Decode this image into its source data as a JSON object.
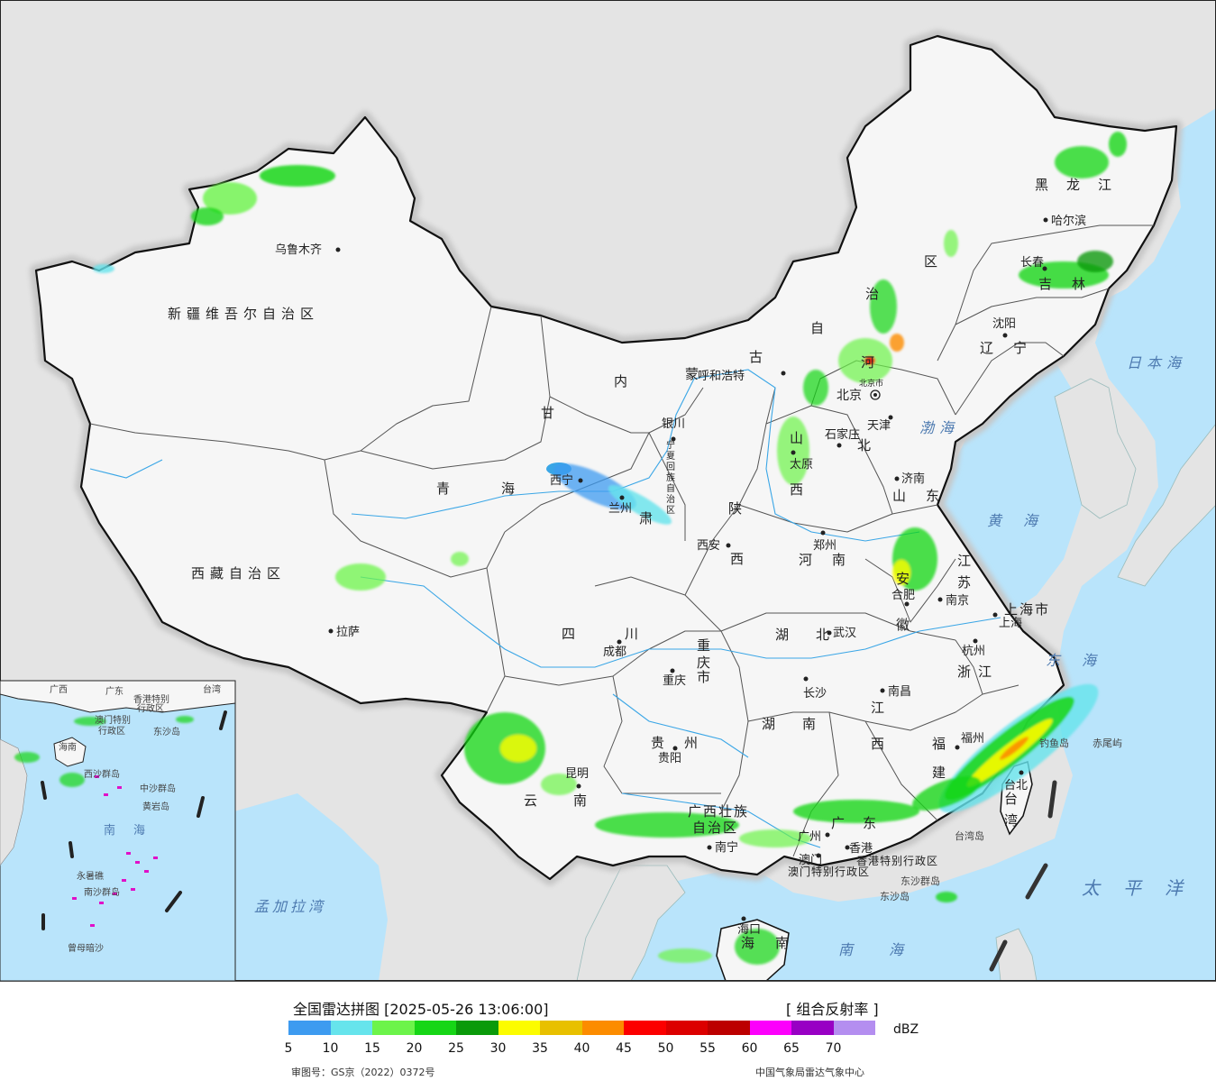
{
  "legend": {
    "title": "全国雷达拼图 [2025-05-26 13:06:00]",
    "product": "[ 组合反射率 ]",
    "unit": "dBZ",
    "ticks": [
      "5",
      "10",
      "15",
      "20",
      "25",
      "30",
      "35",
      "40",
      "45",
      "50",
      "55",
      "60",
      "65",
      "70"
    ],
    "colors": [
      "#3d9bf0",
      "#66e4ec",
      "#6cf44a",
      "#16d616",
      "#0a9a0a",
      "#fcfc00",
      "#e8c000",
      "#fc8c00",
      "#fc0000",
      "#dc0000",
      "#bc0000",
      "#fc00fc",
      "#9800c4",
      "#b48ef0"
    ],
    "approval": "审图号：GS京（2022）0372号",
    "source": "中国气象局雷达气象中心"
  },
  "colors": {
    "ocean": "#b9e4fb",
    "foreign_land": "#e4e4e4",
    "china_land": "#f6f6f6",
    "border": "#111111",
    "ocean_label": "#4d7ab0"
  },
  "labels": {
    "regions": [
      {
        "id": "xinjiang",
        "text": "新疆维吾尔自治区"
      },
      {
        "id": "xizang",
        "text": "西藏自治区"
      },
      {
        "id": "qinghai1",
        "text": "青"
      },
      {
        "id": "qinghai2",
        "text": "海"
      },
      {
        "id": "gansu1",
        "text": "甘"
      },
      {
        "id": "gansu2",
        "text": "肃"
      },
      {
        "id": "nmg1",
        "text": "内"
      },
      {
        "id": "nmg2",
        "text": "蒙"
      },
      {
        "id": "nmg3",
        "text": "古"
      },
      {
        "id": "nmg4",
        "text": "自"
      },
      {
        "id": "nmg5",
        "text": "治"
      },
      {
        "id": "nmg6",
        "text": "区"
      },
      {
        "id": "hlj",
        "text": "黑龙江"
      },
      {
        "id": "jilin",
        "text": "吉林"
      },
      {
        "id": "liaoning",
        "text": "辽宁"
      },
      {
        "id": "hebei1",
        "text": "河"
      },
      {
        "id": "hebei2",
        "text": "北"
      },
      {
        "id": "shanxi1",
        "text": "山"
      },
      {
        "id": "shanxi2",
        "text": "西"
      },
      {
        "id": "shaanxi1",
        "text": "陕"
      },
      {
        "id": "shaanxi2",
        "text": "西"
      },
      {
        "id": "shandong",
        "text": "山东"
      },
      {
        "id": "henan",
        "text": "河南"
      },
      {
        "id": "jiangsu1",
        "text": "江"
      },
      {
        "id": "jiangsu2",
        "text": "苏"
      },
      {
        "id": "anhui1",
        "text": "安"
      },
      {
        "id": "anhui2",
        "text": "徽"
      },
      {
        "id": "sichuan",
        "text": "四川"
      },
      {
        "id": "hubei",
        "text": "湖北"
      },
      {
        "id": "hunan",
        "text": "湖南"
      },
      {
        "id": "jiangxi1",
        "text": "江"
      },
      {
        "id": "jiangxi2",
        "text": "西"
      },
      {
        "id": "zhejiang",
        "text": "浙江"
      },
      {
        "id": "fujian1",
        "text": "福"
      },
      {
        "id": "fujian2",
        "text": "建"
      },
      {
        "id": "guizhou",
        "text": "贵州"
      },
      {
        "id": "yunnan",
        "text": "云南"
      },
      {
        "id": "guangxi1",
        "text": "广西壮族"
      },
      {
        "id": "guangxi2",
        "text": "自治区"
      },
      {
        "id": "guangdong",
        "text": "广东"
      },
      {
        "id": "chongqing1",
        "text": "重"
      },
      {
        "id": "chongqing2",
        "text": "庆"
      },
      {
        "id": "chongqing3",
        "text": "市"
      },
      {
        "id": "shanghaishi",
        "text": "上海市"
      },
      {
        "id": "taiwan1",
        "text": "台"
      },
      {
        "id": "taiwan2",
        "text": "湾"
      },
      {
        "id": "hainan1",
        "text": "海"
      },
      {
        "id": "hainan2",
        "text": "南"
      },
      {
        "id": "hk_sar",
        "text": "香港特别行政区"
      },
      {
        "id": "macao_sar",
        "text": "澳门特别行政区"
      },
      {
        "id": "ningxia1",
        "text": "宁"
      },
      {
        "id": "ningxia2",
        "text": "夏"
      },
      {
        "id": "ningxia3",
        "text": "回"
      },
      {
        "id": "ningxia4",
        "text": "族"
      },
      {
        "id": "ningxia5",
        "text": "自"
      },
      {
        "id": "ningxia6",
        "text": "治"
      },
      {
        "id": "ningxia7",
        "text": "区"
      }
    ],
    "cities": [
      {
        "id": "urumqi",
        "text": "乌鲁木齐"
      },
      {
        "id": "lhasa",
        "text": "拉萨"
      },
      {
        "id": "xining",
        "text": "西宁"
      },
      {
        "id": "lanzhou",
        "text": "兰州"
      },
      {
        "id": "yinchuan",
        "text": "银川"
      },
      {
        "id": "hohhot",
        "text": "呼和浩特"
      },
      {
        "id": "beijing",
        "text": "北京"
      },
      {
        "id": "beijingshi",
        "text": "北京市"
      },
      {
        "id": "tianjin",
        "text": "天津"
      },
      {
        "id": "shijiazhuang",
        "text": "石家庄"
      },
      {
        "id": "taiyuan",
        "text": "太原"
      },
      {
        "id": "jinan",
        "text": "济南"
      },
      {
        "id": "zhengzhou",
        "text": "郑州"
      },
      {
        "id": "xian",
        "text": "西安"
      },
      {
        "id": "harbin",
        "text": "哈尔滨"
      },
      {
        "id": "changchun",
        "text": "长春"
      },
      {
        "id": "shenyang",
        "text": "沈阳"
      },
      {
        "id": "nanjing",
        "text": "南京"
      },
      {
        "id": "hefei",
        "text": "合肥"
      },
      {
        "id": "shanghai",
        "text": "上海"
      },
      {
        "id": "hangzhou",
        "text": "杭州"
      },
      {
        "id": "wuhan",
        "text": "武汉"
      },
      {
        "id": "chengdu",
        "text": "成都"
      },
      {
        "id": "chongqing",
        "text": "重庆"
      },
      {
        "id": "changsha",
        "text": "长沙"
      },
      {
        "id": "nanchang",
        "text": "南昌"
      },
      {
        "id": "fuzhou",
        "text": "福州"
      },
      {
        "id": "taibei",
        "text": "台北"
      },
      {
        "id": "guiyang",
        "text": "贵阳"
      },
      {
        "id": "kunming",
        "text": "昆明"
      },
      {
        "id": "nanning",
        "text": "南宁"
      },
      {
        "id": "guangzhou",
        "text": "广州"
      },
      {
        "id": "hongkong",
        "text": "香港"
      },
      {
        "id": "macau",
        "text": "澳门"
      },
      {
        "id": "haikou",
        "text": "海口"
      }
    ],
    "water": [
      {
        "id": "japan_sea",
        "text": "日本海"
      },
      {
        "id": "bohai",
        "text": "渤海"
      },
      {
        "id": "huanghai",
        "text": "黄海"
      },
      {
        "id": "donghai",
        "text": "东海"
      },
      {
        "id": "taipingyang",
        "text": "太平洋"
      },
      {
        "id": "nanhai",
        "text": "南海"
      },
      {
        "id": "bengal",
        "text": "孟加拉湾"
      }
    ],
    "islands": [
      {
        "id": "diaoyu",
        "text": "钓鱼岛"
      },
      {
        "id": "chiwei",
        "text": "赤尾屿"
      },
      {
        "id": "taiwandao",
        "text": "台湾岛"
      },
      {
        "id": "dongsha_qundao",
        "text": "东沙群岛"
      },
      {
        "id": "dongsha_dao",
        "text": "东沙岛"
      }
    ],
    "inset": [
      {
        "id": "in_guangdong",
        "text": "广东"
      },
      {
        "id": "in_guangxi",
        "text": "广西"
      },
      {
        "id": "in_taiwan",
        "text": "台湾"
      },
      {
        "id": "in_hk",
        "text": "香港特别"
      },
      {
        "id": "in_hk2",
        "text": "行政区"
      },
      {
        "id": "in_mo",
        "text": "澳门特别"
      },
      {
        "id": "in_mo2",
        "text": "行政区"
      },
      {
        "id": "in_dongsha",
        "text": "东沙岛"
      },
      {
        "id": "in_hainan",
        "text": "海南"
      },
      {
        "id": "in_xisha",
        "text": "西沙群岛"
      },
      {
        "id": "in_zhongsha",
        "text": "中沙群岛"
      },
      {
        "id": "in_huangyan",
        "text": "黄岩岛"
      },
      {
        "id": "in_nanhai",
        "text": "南海"
      },
      {
        "id": "in_yongshu",
        "text": "永暑礁"
      },
      {
        "id": "in_nansha",
        "text": "南沙群岛"
      },
      {
        "id": "in_zengmu",
        "text": "曾母暗沙"
      }
    ]
  }
}
